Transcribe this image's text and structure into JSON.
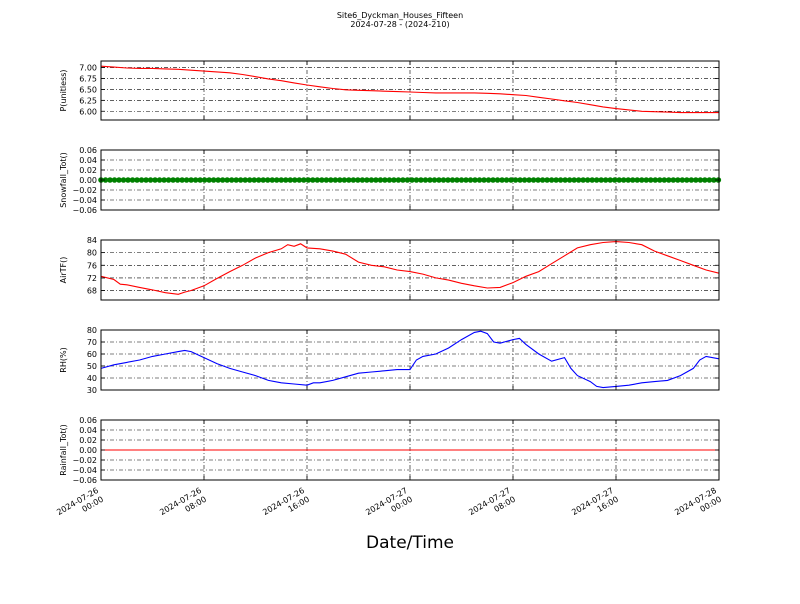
{
  "page": {
    "title": "Site6_Dyckman_Houses_Fifteen",
    "subtitle": "2024-07-28 - (2024-210)",
    "xlabel": "Date/Time"
  },
  "chart_data": [
    {
      "type": "line",
      "ylabel": "P(unitless)",
      "xlim": [
        "2024-07-26 00:00",
        "2024-07-28 00:00"
      ],
      "ylim": [
        5.8,
        7.15
      ],
      "yticks": [
        6.0,
        6.25,
        6.5,
        6.75,
        7.0
      ],
      "ytick_labels": [
        "6.00",
        "6.25",
        "6.50",
        "6.75",
        "7.00"
      ],
      "grid": true,
      "series": [
        {
          "color": "#ff0000",
          "points": [
            [
              0,
              7.03
            ],
            [
              1,
              7.01
            ],
            [
              2,
              6.99
            ],
            [
              3,
              6.98
            ],
            [
              4,
              6.98
            ],
            [
              5,
              6.97
            ],
            [
              6,
              6.96
            ],
            [
              7,
              6.94
            ],
            [
              8,
              6.92
            ],
            [
              9,
              6.9
            ],
            [
              10,
              6.88
            ],
            [
              11,
              6.84
            ],
            [
              12,
              6.79
            ],
            [
              13,
              6.74
            ],
            [
              14,
              6.7
            ],
            [
              15,
              6.65
            ],
            [
              16,
              6.6
            ],
            [
              17,
              6.56
            ],
            [
              18,
              6.52
            ],
            [
              19,
              6.49
            ],
            [
              20,
              6.48
            ],
            [
              21,
              6.47
            ],
            [
              22,
              6.46
            ],
            [
              23,
              6.45
            ],
            [
              24,
              6.44
            ],
            [
              25,
              6.43
            ],
            [
              26,
              6.42
            ],
            [
              27,
              6.42
            ],
            [
              28,
              6.42
            ],
            [
              29,
              6.42
            ],
            [
              30,
              6.41
            ],
            [
              31,
              6.4
            ],
            [
              32,
              6.38
            ],
            [
              33,
              6.36
            ],
            [
              34,
              6.32
            ],
            [
              35,
              6.28
            ],
            [
              36,
              6.24
            ],
            [
              37,
              6.2
            ],
            [
              38,
              6.15
            ],
            [
              39,
              6.1
            ],
            [
              40,
              6.06
            ],
            [
              41,
              6.03
            ],
            [
              42,
              6.0
            ],
            [
              43,
              5.99
            ],
            [
              44,
              5.98
            ],
            [
              45,
              5.97
            ],
            [
              46,
              5.97
            ],
            [
              47,
              5.97
            ],
            [
              48,
              5.97
            ]
          ]
        }
      ]
    },
    {
      "type": "line",
      "ylabel": "Snowfall_Tot()",
      "xlim": [
        "2024-07-26 00:00",
        "2024-07-28 00:00"
      ],
      "ylim": [
        -0.06,
        0.06
      ],
      "yticks": [
        -0.06,
        -0.04,
        -0.02,
        0.0,
        0.02,
        0.04,
        0.06
      ],
      "ytick_labels": [
        "−0.06",
        "−0.04",
        "−0.02",
        "0.00",
        "0.02",
        "0.04",
        "0.06"
      ],
      "grid": true,
      "series": [
        {
          "color": "#008000",
          "marker": "circle",
          "points": [
            [
              0,
              0
            ],
            [
              48,
              0
            ]
          ]
        }
      ]
    },
    {
      "type": "line",
      "ylabel": "AirTF()",
      "xlim": [
        "2024-07-26 00:00",
        "2024-07-28 00:00"
      ],
      "ylim": [
        65,
        84
      ],
      "yticks": [
        68,
        72,
        76,
        80,
        84
      ],
      "ytick_labels": [
        "68",
        "72",
        "76",
        "80",
        "84"
      ],
      "grid": true,
      "series": [
        {
          "color": "#ff0000",
          "points": [
            [
              0,
              72.5
            ],
            [
              1,
              71.5
            ],
            [
              1.5,
              70
            ],
            [
              2,
              69.8
            ],
            [
              3,
              69.0
            ],
            [
              4,
              68.2
            ],
            [
              5,
              67.3
            ],
            [
              6,
              66.8
            ],
            [
              6.5,
              67.5
            ],
            [
              7,
              68.0
            ],
            [
              8,
              69.5
            ],
            [
              9,
              71.8
            ],
            [
              10,
              74.0
            ],
            [
              11,
              76.0
            ],
            [
              12,
              78.3
            ],
            [
              13,
              80.0
            ],
            [
              14,
              81.2
            ],
            [
              14.5,
              82.5
            ],
            [
              15,
              82.0
            ],
            [
              15.5,
              82.8
            ],
            [
              16,
              81.5
            ],
            [
              17,
              81.2
            ],
            [
              18,
              80.5
            ],
            [
              19,
              79.5
            ],
            [
              20,
              77.0
            ],
            [
              21,
              76.0
            ],
            [
              22,
              75.5
            ],
            [
              23,
              74.5
            ],
            [
              24,
              74.0
            ],
            [
              25,
              73.2
            ],
            [
              26,
              72.0
            ],
            [
              27,
              71.3
            ],
            [
              28,
              70.3
            ],
            [
              29,
              69.5
            ],
            [
              30,
              68.8
            ],
            [
              31,
              69.0
            ],
            [
              32,
              70.5
            ],
            [
              33,
              72.5
            ],
            [
              34,
              74.0
            ],
            [
              35,
              76.5
            ],
            [
              36,
              79.0
            ],
            [
              37,
              81.5
            ],
            [
              38,
              82.5
            ],
            [
              39,
              83.2
            ],
            [
              40,
              83.5
            ],
            [
              41,
              83.2
            ],
            [
              42,
              82.5
            ],
            [
              43,
              80.5
            ],
            [
              44,
              79.0
            ],
            [
              45,
              77.5
            ],
            [
              46,
              76.0
            ],
            [
              47,
              74.5
            ],
            [
              48,
              73.5
            ]
          ]
        }
      ]
    },
    {
      "type": "line",
      "ylabel": "RH(%)",
      "xlim": [
        "2024-07-26 00:00",
        "2024-07-28 00:00"
      ],
      "ylim": [
        30,
        80
      ],
      "yticks": [
        30,
        40,
        50,
        60,
        70,
        80
      ],
      "ytick_labels": [
        "30",
        "40",
        "50",
        "60",
        "70",
        "80"
      ],
      "grid": true,
      "series": [
        {
          "color": "#0000ff",
          "points": [
            [
              0,
              48
            ],
            [
              1,
              51
            ],
            [
              2,
              53
            ],
            [
              3,
              55
            ],
            [
              4,
              58
            ],
            [
              5,
              60
            ],
            [
              6,
              62
            ],
            [
              6.5,
              63
            ],
            [
              7,
              62
            ],
            [
              8,
              57
            ],
            [
              9,
              52
            ],
            [
              10,
              48
            ],
            [
              11,
              45
            ],
            [
              12,
              42
            ],
            [
              13,
              38
            ],
            [
              14,
              36
            ],
            [
              15,
              35
            ],
            [
              16,
              34
            ],
            [
              16.5,
              36
            ],
            [
              17,
              36
            ],
            [
              18,
              38
            ],
            [
              19,
              41
            ],
            [
              20,
              44
            ],
            [
              21,
              45
            ],
            [
              22,
              46
            ],
            [
              23,
              47
            ],
            [
              24,
              47
            ],
            [
              24.5,
              55
            ],
            [
              25,
              58
            ],
            [
              26,
              60
            ],
            [
              27,
              65
            ],
            [
              28,
              72
            ],
            [
              29,
              78
            ],
            [
              29.5,
              79
            ],
            [
              30,
              77
            ],
            [
              30.5,
              70
            ],
            [
              31,
              69
            ],
            [
              32,
              72
            ],
            [
              32.5,
              73
            ],
            [
              33,
              68
            ],
            [
              34,
              60
            ],
            [
              35,
              54
            ],
            [
              36,
              57
            ],
            [
              36.5,
              48
            ],
            [
              37,
              42
            ],
            [
              38,
              37
            ],
            [
              38.5,
              33
            ],
            [
              39,
              32
            ],
            [
              40,
              33
            ],
            [
              41,
              34
            ],
            [
              42,
              36
            ],
            [
              43,
              37
            ],
            [
              44,
              38
            ],
            [
              45,
              42
            ],
            [
              46,
              48
            ],
            [
              46.5,
              55
            ],
            [
              47,
              58
            ],
            [
              48,
              56
            ]
          ]
        }
      ]
    },
    {
      "type": "line",
      "ylabel": "Rainfall_Tot()",
      "xlim": [
        "2024-07-26 00:00",
        "2024-07-28 00:00"
      ],
      "ylim": [
        -0.06,
        0.06
      ],
      "yticks": [
        -0.06,
        -0.04,
        -0.02,
        0.0,
        0.02,
        0.04,
        0.06
      ],
      "ytick_labels": [
        "−0.06",
        "−0.04",
        "−0.02",
        "0.00",
        "0.02",
        "0.04",
        "0.06"
      ],
      "grid": true,
      "series": [
        {
          "color": "#ff0000",
          "points": [
            [
              0,
              0
            ],
            [
              48,
              0
            ]
          ]
        }
      ]
    }
  ],
  "x_axis": {
    "tick_hours": [
      0,
      8,
      16,
      24,
      32,
      40,
      48
    ],
    "tick_labels": [
      [
        "2024-07-26",
        "00:00"
      ],
      [
        "2024-07-26",
        "08:00"
      ],
      [
        "2024-07-26",
        "16:00"
      ],
      [
        "2024-07-27",
        "00:00"
      ],
      [
        "2024-07-27",
        "08:00"
      ],
      [
        "2024-07-27",
        "16:00"
      ],
      [
        "2024-07-28",
        "00:00"
      ]
    ]
  }
}
